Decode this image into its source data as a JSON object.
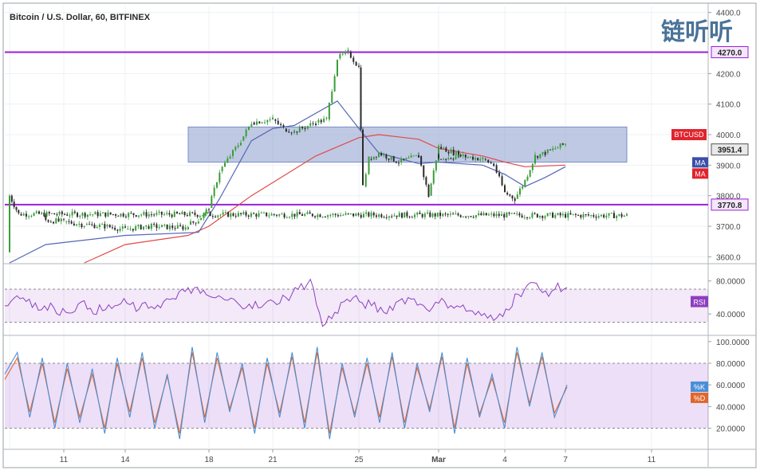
{
  "chart_data": [
    {
      "type": "candlestick",
      "title": "Bitcoin / U.S. Dollar, 60, BITFINEX",
      "symbol_badge": "BTCUSD",
      "last_price": "3951.4",
      "ylim": [
        3580,
        4420
      ],
      "y_ticks": [
        "3600.0",
        "3700.0",
        "3800.0",
        "3900.0",
        "4000.0",
        "4100.0",
        "4200.0",
        "4400.0"
      ],
      "x_ticks": [
        "11",
        "14",
        "18",
        "21",
        "25",
        "Mar",
        "4",
        "7",
        "11"
      ],
      "horizontal_levels": [
        {
          "label": "4270.0",
          "value": 4270.0,
          "color": "#9b1ed8"
        },
        {
          "label": "3770.8",
          "value": 3770.8,
          "color": "#9b1ed8"
        }
      ],
      "range_box": {
        "low": 3910,
        "high": 4025,
        "from": "16",
        "to": "9"
      },
      "indicator_badges": [
        {
          "label": "MA",
          "color": "#3b4fa8"
        },
        {
          "label": "MA",
          "color": "#e0242d"
        }
      ],
      "price_path": [
        [
          "8",
          3615
        ],
        [
          "8",
          3800
        ],
        [
          "8.5",
          3740
        ],
        [
          "9",
          3735
        ],
        [
          "10",
          3720
        ],
        [
          "11",
          3715
        ],
        [
          "12",
          3705
        ],
        [
          "13",
          3700
        ],
        [
          "14",
          3690
        ],
        [
          "15",
          3700
        ],
        [
          "16",
          3695
        ],
        [
          "17",
          3705
        ],
        [
          "17.5",
          3720
        ],
        [
          "18",
          3760
        ],
        [
          "18.5",
          3880
        ],
        [
          "19",
          3930
        ],
        [
          "19.5",
          3980
        ],
        [
          "20",
          4040
        ],
        [
          "21",
          4050
        ],
        [
          "21.5",
          4020
        ],
        [
          "22",
          4010
        ],
        [
          "23",
          4040
        ],
        [
          "23.5",
          4050
        ],
        [
          "24",
          4250
        ],
        [
          "24.5",
          4270
        ],
        [
          "25",
          4220
        ],
        [
          "25.2",
          3830
        ],
        [
          "25.5",
          3920
        ],
        [
          "26",
          3940
        ],
        [
          "27",
          3910
        ],
        [
          "28",
          3930
        ],
        [
          "28.5",
          3800
        ],
        [
          "29",
          3960
        ],
        [
          "30",
          3935
        ],
        [
          "Mar",
          3920
        ],
        [
          "2",
          3930
        ],
        [
          "3",
          3920
        ],
        [
          "3.5",
          3900
        ],
        [
          "4",
          3810
        ],
        [
          "4.5",
          3790
        ],
        [
          "5",
          3850
        ],
        [
          "5.5",
          3930
        ],
        [
          "6",
          3940
        ],
        [
          "6.5",
          3955
        ],
        [
          "7",
          3970
        ]
      ],
      "ma_blue": [
        [
          "8",
          3580
        ],
        [
          "10",
          3640
        ],
        [
          "14",
          3670
        ],
        [
          "17.5",
          3680
        ],
        [
          "18.5",
          3790
        ],
        [
          "20",
          3980
        ],
        [
          "21",
          4020
        ],
        [
          "22",
          4030
        ],
        [
          "24",
          4110
        ],
        [
          "25",
          4020
        ],
        [
          "26",
          3940
        ],
        [
          "28",
          3905
        ],
        [
          "Mar",
          3910
        ],
        [
          "3",
          3900
        ],
        [
          "4",
          3870
        ],
        [
          "5",
          3830
        ],
        [
          "6",
          3860
        ],
        [
          "7",
          3895
        ]
      ],
      "ma_red": [
        [
          "12",
          3580
        ],
        [
          "14",
          3640
        ],
        [
          "17",
          3670
        ],
        [
          "18",
          3700
        ],
        [
          "20",
          3800
        ],
        [
          "23",
          3930
        ],
        [
          "25",
          3990
        ],
        [
          "26",
          4000
        ],
        [
          "28",
          3985
        ],
        [
          "Mar",
          3955
        ],
        [
          "3",
          3930
        ],
        [
          "4",
          3910
        ],
        [
          "5",
          3895
        ],
        [
          "7",
          3900
        ]
      ]
    },
    {
      "type": "line",
      "name": "RSI",
      "badge": "RSI",
      "y_ticks": [
        "80.0000",
        "40.0000"
      ],
      "band": [
        70,
        30
      ],
      "ylim": [
        15,
        100
      ],
      "values": [
        50,
        62,
        58,
        45,
        48,
        42,
        52,
        47,
        44,
        50,
        53,
        46,
        49,
        55,
        58,
        72,
        65,
        60,
        57,
        54,
        52,
        48,
        55,
        60,
        70,
        82,
        25,
        42,
        58,
        55,
        50,
        42,
        54,
        60,
        52,
        48,
        55,
        50,
        44,
        38,
        32,
        46,
        64,
        78,
        66,
        70,
        72
      ]
    },
    {
      "type": "line",
      "name": "Stochastic",
      "badges": [
        "%K",
        "%D"
      ],
      "y_ticks": [
        "100.0000",
        "80.0000",
        "60.0000",
        "40.0000",
        "20.0000"
      ],
      "band": [
        80,
        20
      ],
      "ylim": [
        2,
        105
      ],
      "k_values": [
        70,
        90,
        30,
        85,
        20,
        80,
        25,
        75,
        15,
        85,
        30,
        90,
        20,
        70,
        10,
        95,
        25,
        90,
        35,
        80,
        15,
        85,
        30,
        90,
        20,
        95,
        10,
        80,
        30,
        85,
        25,
        90,
        20,
        80,
        35,
        90,
        15,
        85,
        30,
        70,
        20,
        95,
        40,
        90,
        30,
        60
      ],
      "d_values": [
        65,
        85,
        35,
        80,
        25,
        75,
        30,
        70,
        20,
        80,
        35,
        85,
        25,
        68,
        15,
        90,
        30,
        85,
        38,
        76,
        20,
        80,
        34,
        86,
        25,
        90,
        15,
        76,
        33,
        80,
        30,
        86,
        25,
        76,
        38,
        86,
        20,
        80,
        33,
        66,
        25,
        90,
        43,
        86,
        34,
        58
      ]
    }
  ],
  "watermark": "链听听"
}
